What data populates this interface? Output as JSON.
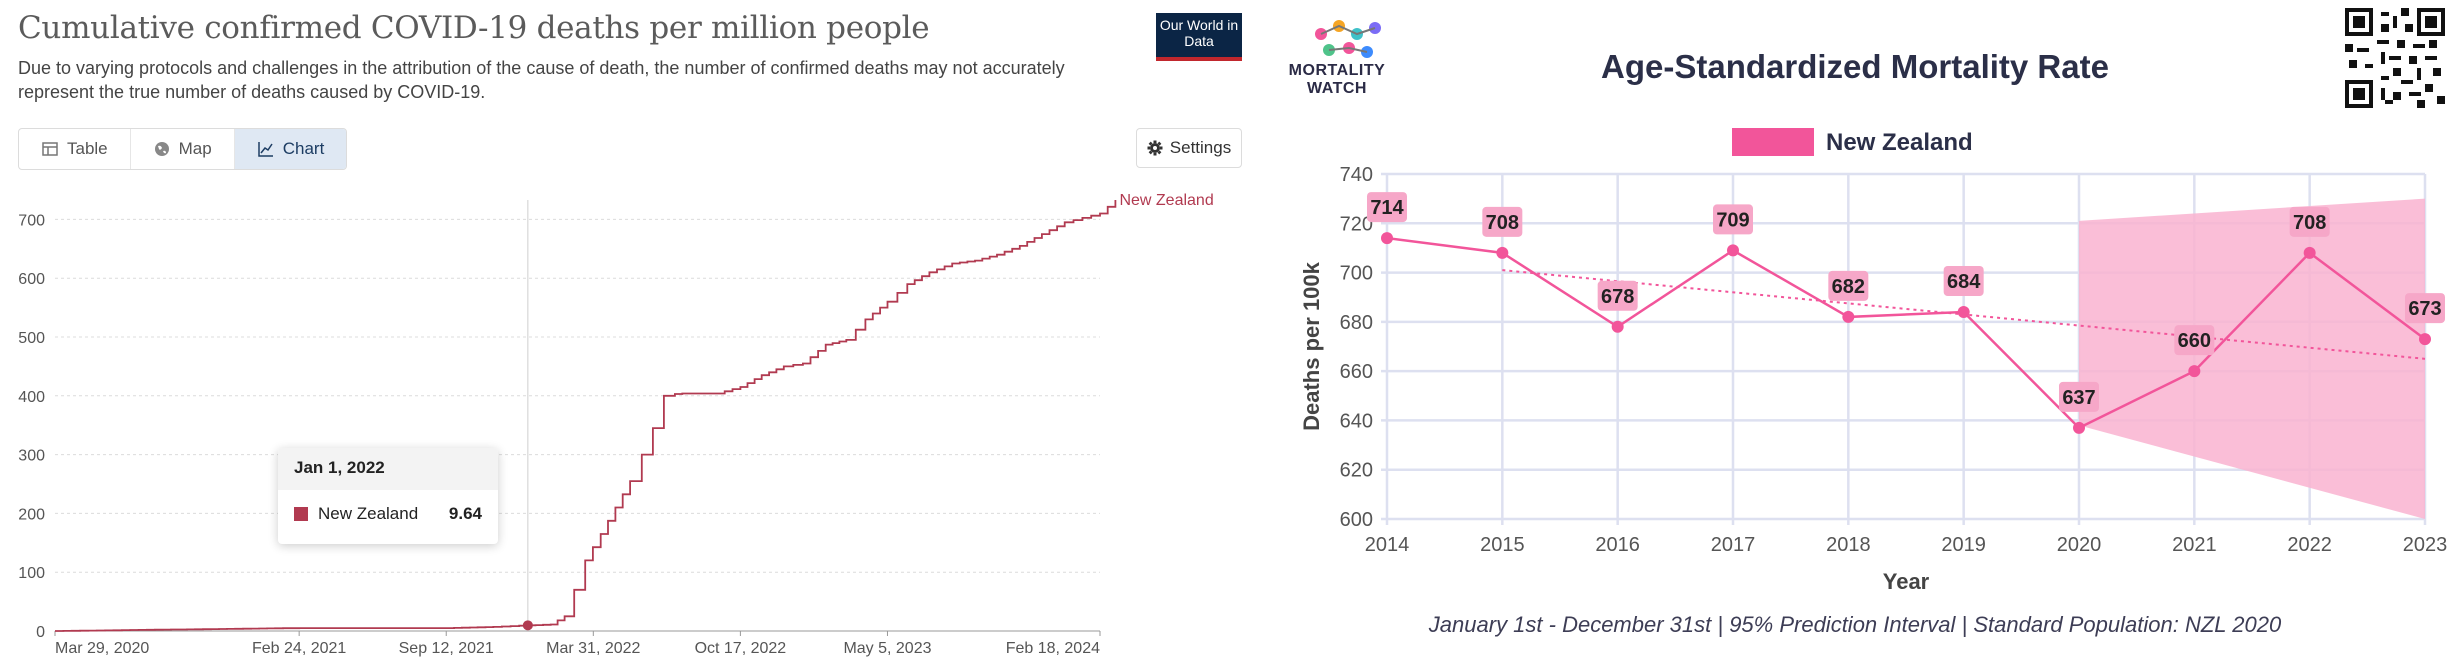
{
  "owid": {
    "title": "Cumulative confirmed COVID-19 deaths per million people",
    "subtitle": "Due to varying protocols and challenges in the attribution of the cause of death, the number of confirmed deaths may not accurately represent the true number of deaths caused by COVID-19.",
    "logo_text": "Our World in Data",
    "tabs": [
      {
        "label": "Table",
        "icon": "table-icon",
        "active": false
      },
      {
        "label": "Map",
        "icon": "globe-icon",
        "active": false
      },
      {
        "label": "Chart",
        "icon": "line-chart-icon",
        "active": true
      }
    ],
    "settings_label": "Settings",
    "tooltip": {
      "date": "Jan 1, 2022",
      "series": "New Zealand",
      "value": "9.64"
    },
    "colors": {
      "series": "#b13a50",
      "active_tab": "#dfe8f3"
    }
  },
  "mw": {
    "logo_text": "MORTALITY WATCH",
    "title": "Age-Standardized Mortality Rate",
    "footer": "January 1st - December 31st | 95% Prediction Interval | Standard Population: NZL 2020",
    "colors": {
      "series": "#f2559a",
      "band": "#f9b3d0",
      "label_bg": "#f6a7c8",
      "grid": "#dde0f0"
    }
  },
  "chart_data": [
    {
      "type": "line",
      "title": "Cumulative confirmed COVID-19 deaths per million people",
      "series": [
        {
          "name": "New Zealand",
          "x": [
            "2020-03-29",
            "2020-08-01",
            "2021-02-24",
            "2021-09-12",
            "2021-11-15",
            "2022-01-01",
            "2022-02-01",
            "2022-02-20",
            "2022-03-05",
            "2022-03-20",
            "2022-04-10",
            "2022-04-30",
            "2022-05-20",
            "2022-06-05",
            "2022-06-20",
            "2022-07-05",
            "2022-07-20",
            "2022-07-30",
            "2022-08-15",
            "2022-09-15",
            "2022-10-17",
            "2022-11-15",
            "2022-12-15",
            "2023-01-10",
            "2023-02-10",
            "2023-03-10",
            "2023-04-05",
            "2023-05-05",
            "2023-06-01",
            "2023-07-01",
            "2023-08-01",
            "2023-09-01",
            "2023-10-01",
            "2023-11-01",
            "2023-12-01",
            "2024-01-01",
            "2024-02-18",
            "2024-03-10"
          ],
          "y": [
            0,
            2,
            5,
            5,
            7,
            9.64,
            11,
            25,
            70,
            120,
            165,
            210,
            255,
            300,
            345,
            400,
            403,
            404,
            404,
            404,
            415,
            435,
            450,
            455,
            487,
            495,
            530,
            560,
            590,
            610,
            625,
            630,
            640,
            655,
            675,
            695,
            710,
            733
          ]
        }
      ],
      "x_ticks": [
        "Mar 29, 2020",
        "Feb 24, 2021",
        "Sep 12, 2021",
        "Mar 31, 2022",
        "Oct 17, 2022",
        "May 5, 2023",
        "Feb 18, 2024"
      ],
      "y_ticks": [
        0,
        100,
        200,
        300,
        400,
        500,
        600,
        700
      ],
      "ylim": [
        0,
        733
      ],
      "grid": "horizontal dashed",
      "highlight": {
        "x": "2022-01-01",
        "y": 9.64
      }
    },
    {
      "type": "line",
      "title": "Age-Standardized Mortality Rate",
      "xlabel": "Year",
      "ylabel": "Deaths per 100k",
      "legend": "top-center",
      "series": [
        {
          "name": "New Zealand",
          "x": [
            2014,
            2015,
            2016,
            2017,
            2018,
            2019,
            2020,
            2021,
            2022,
            2023
          ],
          "values": [
            714,
            708,
            678,
            709,
            682,
            684,
            637,
            660,
            708,
            673
          ]
        }
      ],
      "trend": {
        "x": [
          2015,
          2023
        ],
        "y": [
          701,
          665
        ]
      },
      "prediction_interval": {
        "x": [
          2020,
          2023
        ],
        "upper": [
          721,
          730
        ],
        "lower": [
          638,
          600
        ]
      },
      "ylim": [
        600,
        740
      ],
      "y_ticks": [
        600,
        620,
        640,
        660,
        680,
        700,
        720,
        740
      ],
      "x_ticks": [
        2014,
        2015,
        2016,
        2017,
        2018,
        2019,
        2020,
        2021,
        2022,
        2023
      ],
      "grid": true
    }
  ]
}
